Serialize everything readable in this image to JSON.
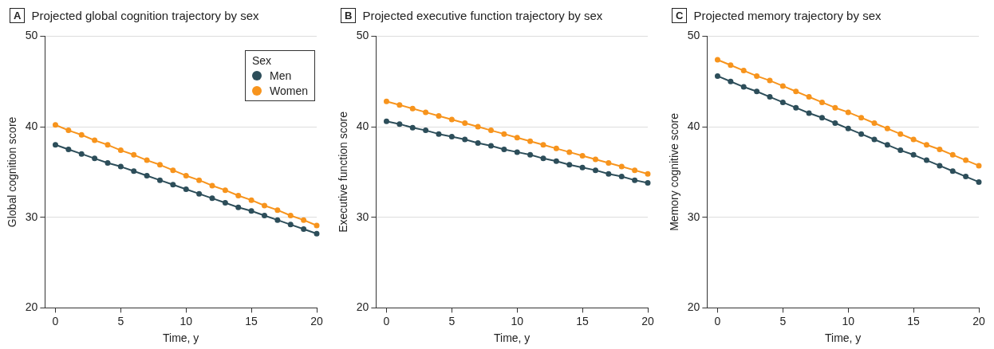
{
  "chart_data": [
    {
      "type": "line",
      "title": "Projected global cognition trajectory by sex",
      "annotations": [
        "A"
      ],
      "xlabel": "Time, y",
      "ylabel": "Global cognition score",
      "legend_title": "Sex",
      "legend": "top right",
      "grid": "y",
      "marker": "circle",
      "line_style": "solid",
      "x": [
        0,
        1,
        2,
        3,
        4,
        5,
        6,
        7,
        8,
        9,
        10,
        11,
        12,
        13,
        14,
        15,
        16,
        17,
        18,
        19,
        20
      ],
      "xlim": [
        -0.8,
        20
      ],
      "xticks": [
        0,
        5,
        10,
        15,
        20
      ],
      "ylim": [
        20,
        50
      ],
      "yticks": [
        20,
        30,
        40,
        50
      ],
      "series": [
        {
          "name": "Men",
          "color": "#2d4e5a",
          "values": [
            38.0,
            37.5,
            37.0,
            36.5,
            36.0,
            35.6,
            35.1,
            34.6,
            34.1,
            33.6,
            33.1,
            32.6,
            32.1,
            31.6,
            31.1,
            30.7,
            30.2,
            29.7,
            29.2,
            28.7,
            28.2
          ]
        },
        {
          "name": "Women",
          "color": "#f7941d",
          "values": [
            40.2,
            39.6,
            39.1,
            38.5,
            38.0,
            37.4,
            36.9,
            36.3,
            35.8,
            35.2,
            34.6,
            34.1,
            33.5,
            33.0,
            32.4,
            31.9,
            31.3,
            30.8,
            30.2,
            29.7,
            29.1
          ]
        }
      ]
    },
    {
      "type": "line",
      "title": "Projected executive function trajectory by sex",
      "annotations": [
        "B"
      ],
      "xlabel": "Time, y",
      "ylabel": "Executive function score",
      "grid": "y",
      "marker": "circle",
      "line_style": "solid",
      "x": [
        0,
        1,
        2,
        3,
        4,
        5,
        6,
        7,
        8,
        9,
        10,
        11,
        12,
        13,
        14,
        15,
        16,
        17,
        18,
        19,
        20
      ],
      "xlim": [
        -0.8,
        20
      ],
      "xticks": [
        0,
        5,
        10,
        15,
        20
      ],
      "ylim": [
        20,
        50
      ],
      "yticks": [
        20,
        30,
        40,
        50
      ],
      "series": [
        {
          "color": "#2d4e5a",
          "values": [
            40.6,
            40.3,
            39.9,
            39.6,
            39.2,
            38.9,
            38.6,
            38.2,
            37.9,
            37.5,
            37.2,
            36.9,
            36.5,
            36.2,
            35.8,
            35.5,
            35.2,
            34.8,
            34.5,
            34.1,
            33.8
          ]
        },
        {
          "color": "#f7941d",
          "values": [
            42.8,
            42.4,
            42.0,
            41.6,
            41.2,
            40.8,
            40.4,
            40.0,
            39.6,
            39.2,
            38.8,
            38.4,
            38.0,
            37.6,
            37.2,
            36.8,
            36.4,
            36.0,
            35.6,
            35.2,
            34.8
          ]
        }
      ]
    },
    {
      "type": "line",
      "title": "Projected memory trajectory by sex",
      "annotations": [
        "C"
      ],
      "xlabel": "Time, y",
      "ylabel": "Memory cognitive score",
      "grid": "y",
      "marker": "circle",
      "line_style": "solid",
      "x": [
        0,
        1,
        2,
        3,
        4,
        5,
        6,
        7,
        8,
        9,
        10,
        11,
        12,
        13,
        14,
        15,
        16,
        17,
        18,
        19,
        20
      ],
      "xlim": [
        -0.8,
        20
      ],
      "xticks": [
        0,
        5,
        10,
        15,
        20
      ],
      "ylim": [
        20,
        50
      ],
      "yticks": [
        20,
        30,
        40,
        50
      ],
      "series": [
        {
          "color": "#2d4e5a",
          "values": [
            45.6,
            45.0,
            44.4,
            43.9,
            43.3,
            42.7,
            42.1,
            41.5,
            41.0,
            40.4,
            39.8,
            39.2,
            38.6,
            38.0,
            37.4,
            36.9,
            36.3,
            35.7,
            35.1,
            34.5,
            33.9
          ]
        },
        {
          "color": "#f7941d",
          "values": [
            47.4,
            46.8,
            46.2,
            45.6,
            45.1,
            44.5,
            43.9,
            43.3,
            42.7,
            42.1,
            41.6,
            41.0,
            40.4,
            39.8,
            39.2,
            38.6,
            38.0,
            37.5,
            36.9,
            36.3,
            35.7
          ]
        }
      ]
    }
  ]
}
